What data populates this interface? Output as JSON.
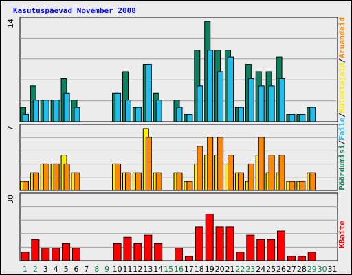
{
  "chart_data": {
    "type": "bar",
    "title": "Kasutuspäevad November 2008",
    "x": [
      "1",
      "2",
      "3",
      "4",
      "5",
      "6",
      "7",
      "8",
      "9",
      "10",
      "11",
      "12",
      "13",
      "14",
      "15",
      "16",
      "17",
      "18",
      "19",
      "20",
      "21",
      "22",
      "23",
      "24",
      "25",
      "26",
      "27",
      "28",
      "29",
      "30",
      "31"
    ],
    "weekend_days": [
      "1",
      "2",
      "8",
      "9",
      "15",
      "16",
      "22",
      "23",
      "29",
      "30"
    ],
    "panels": [
      {
        "id": "top",
        "ymax": 14,
        "tick_label": "14",
        "series": [
          {
            "name": "Pöördumisi",
            "color": "#0d8060",
            "values": [
              2,
              5,
              3,
              3,
              6,
              3,
              0,
              0,
              0,
              4,
              7,
              2,
              8,
              4,
              0,
              3,
              1,
              10,
              14,
              10,
              10,
              2,
              8,
              7,
              7,
              9,
              1,
              1,
              2,
              0,
              0
            ]
          },
          {
            "name": "Faile",
            "color": "#1ebeef",
            "values": [
              1,
              3,
              3,
              3,
              4,
              2,
              0,
              0,
              0,
              4,
              3,
              2,
              8,
              3,
              0,
              2,
              1,
              5,
              10,
              7,
              9,
              2,
              6,
              5,
              5,
              6,
              1,
              1,
              2,
              0,
              0
            ]
          }
        ]
      },
      {
        "id": "middle",
        "ymax": 7,
        "tick_label": "7",
        "series": [
          {
            "name": "Külastajaid",
            "color": "#ffee00",
            "values": [
              1,
              2,
              3,
              3,
              4,
              2,
              0,
              0,
              0,
              3,
              2,
              2,
              7,
              2,
              0,
              2,
              1,
              3,
              4,
              4,
              3,
              2,
              1,
              4,
              2,
              2,
              1,
              1,
              2,
              0,
              0
            ]
          },
          {
            "name": "Aruandeid",
            "color": "#ff8800",
            "values": [
              1,
              2,
              3,
              3,
              3,
              2,
              0,
              0,
              0,
              3,
              2,
              2,
              6,
              2,
              0,
              2,
              1,
              5,
              6,
              6,
              4,
              2,
              3,
              6,
              4,
              4,
              1,
              1,
              2,
              0,
              0
            ]
          }
        ]
      },
      {
        "id": "bottom",
        "ymax": 30,
        "tick_label": "30",
        "series": [
          {
            "name": "KBaite",
            "color": "#ff0000",
            "values": [
              4,
              10,
              6,
              6,
              8,
              6,
              0,
              0,
              0,
              8,
              11,
              8,
              12,
              8,
              0,
              6,
              2,
              16,
              22,
              16,
              16,
              4,
              12,
              10,
              10,
              14,
              2,
              2,
              4,
              0,
              0
            ]
          }
        ]
      }
    ]
  },
  "right_labels": {
    "top": [
      "Pöördumisi",
      "/",
      "Faile",
      "/",
      "Külastajaid",
      "/",
      "Aruandeid"
    ],
    "bottom": "KBaite"
  },
  "colors": {
    "title": "#0000ff",
    "weekday": "#000000",
    "weekend": "#008040",
    "slash": "#000000",
    "grid": "#a0a0a0",
    "panel_bg": "#ececec"
  }
}
